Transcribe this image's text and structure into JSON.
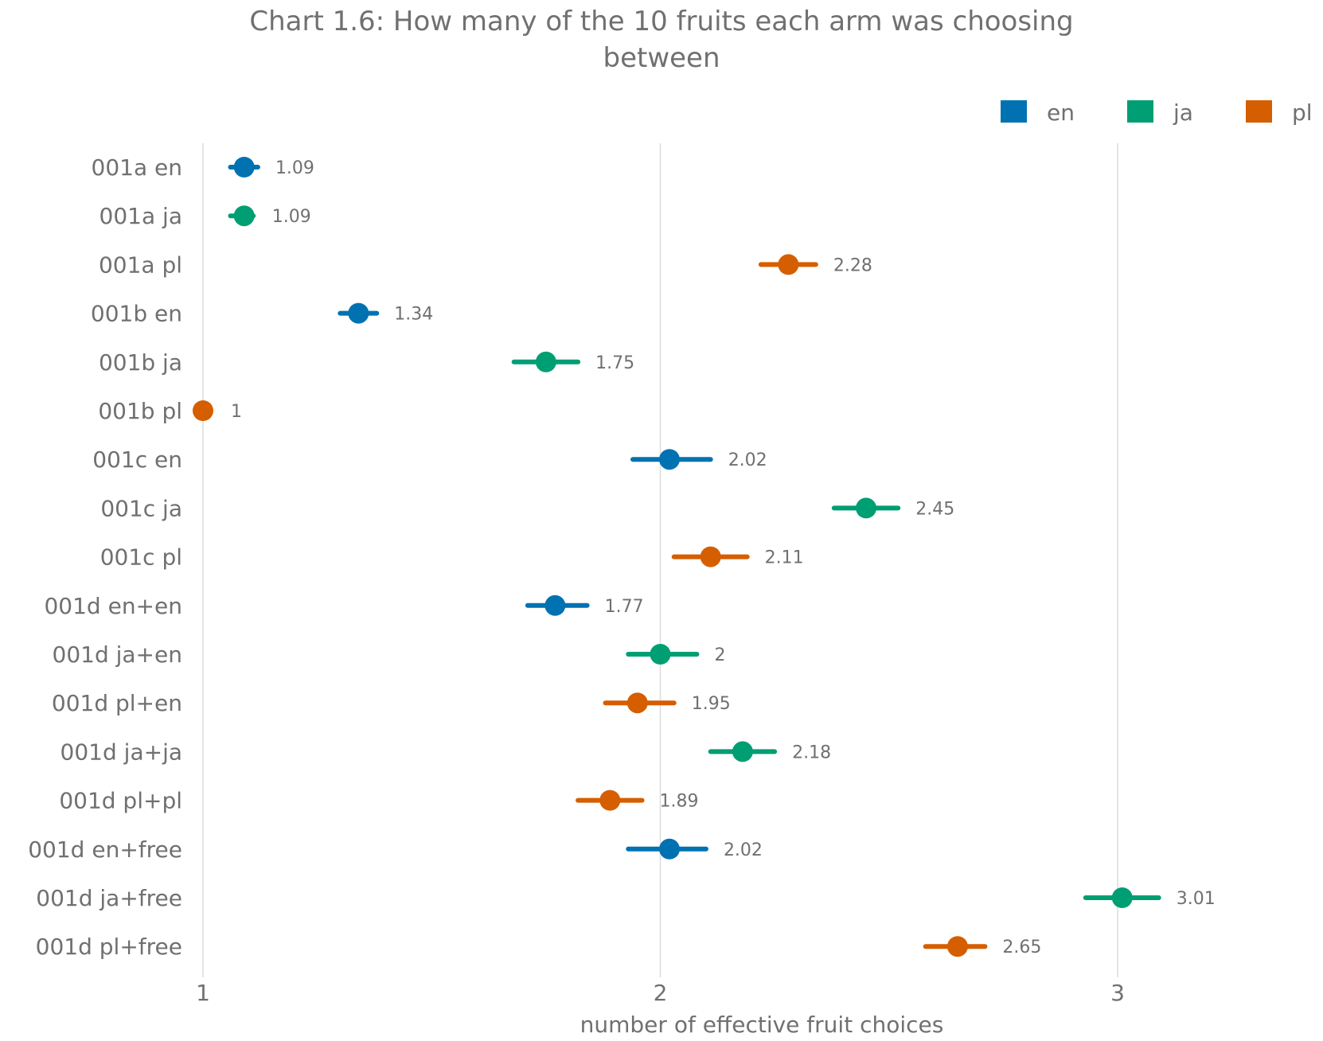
{
  "chart_data": {
    "type": "dot-errorbar",
    "title_lines": [
      "Chart 1.6: How many of the 10 fruits each arm was choosing",
      "between"
    ],
    "xlabel": "number of effective fruit choices",
    "ylabel": "",
    "xlim": [
      1,
      3.45
    ],
    "x_ticks": [
      1,
      2,
      3
    ],
    "grid": "vertical",
    "legend": {
      "position": "top-right",
      "entries": [
        "en",
        "ja",
        "pl"
      ]
    },
    "colors": {
      "en": "#0072b2",
      "ja": "#009e73",
      "pl": "#d55e00"
    },
    "points": [
      {
        "label": "001a en",
        "group": "en",
        "value": 1.09,
        "value_label": "1.09",
        "ci": [
          1.06,
          1.12
        ]
      },
      {
        "label": "001a ja",
        "group": "ja",
        "value": 1.09,
        "value_label": "1.09",
        "ci": [
          1.06,
          1.11
        ]
      },
      {
        "label": "001a pl",
        "group": "pl",
        "value": 2.28,
        "value_label": "2.28",
        "ci": [
          2.22,
          2.34
        ]
      },
      {
        "label": "001b en",
        "group": "en",
        "value": 1.34,
        "value_label": "1.34",
        "ci": [
          1.3,
          1.38
        ]
      },
      {
        "label": "001b ja",
        "group": "ja",
        "value": 1.75,
        "value_label": "1.75",
        "ci": [
          1.68,
          1.82
        ]
      },
      {
        "label": "001b pl",
        "group": "pl",
        "value": 1.0,
        "value_label": "1",
        "ci": [
          1.0,
          1.0
        ]
      },
      {
        "label": "001c en",
        "group": "en",
        "value": 2.02,
        "value_label": "2.02",
        "ci": [
          1.94,
          2.11
        ]
      },
      {
        "label": "001c ja",
        "group": "ja",
        "value": 2.45,
        "value_label": "2.45",
        "ci": [
          2.38,
          2.52
        ]
      },
      {
        "label": "001c pl",
        "group": "pl",
        "value": 2.11,
        "value_label": "2.11",
        "ci": [
          2.03,
          2.19
        ]
      },
      {
        "label": "001d en+en",
        "group": "en",
        "value": 1.77,
        "value_label": "1.77",
        "ci": [
          1.71,
          1.84
        ]
      },
      {
        "label": "001d ja+en",
        "group": "ja",
        "value": 2.0,
        "value_label": "2",
        "ci": [
          1.93,
          2.08
        ]
      },
      {
        "label": "001d pl+en",
        "group": "pl",
        "value": 1.95,
        "value_label": "1.95",
        "ci": [
          1.88,
          2.03
        ]
      },
      {
        "label": "001d ja+ja",
        "group": "ja",
        "value": 2.18,
        "value_label": "2.18",
        "ci": [
          2.11,
          2.25
        ]
      },
      {
        "label": "001d pl+pl",
        "group": "pl",
        "value": 1.89,
        "value_label": "1.89",
        "ci": [
          1.82,
          1.96
        ]
      },
      {
        "label": "001d en+free",
        "group": "en",
        "value": 2.02,
        "value_label": "2.02",
        "ci": [
          1.93,
          2.1
        ]
      },
      {
        "label": "001d ja+free",
        "group": "ja",
        "value": 3.01,
        "value_label": "3.01",
        "ci": [
          2.93,
          3.09
        ]
      },
      {
        "label": "001d pl+free",
        "group": "pl",
        "value": 2.65,
        "value_label": "2.65",
        "ci": [
          2.58,
          2.71
        ]
      }
    ]
  }
}
